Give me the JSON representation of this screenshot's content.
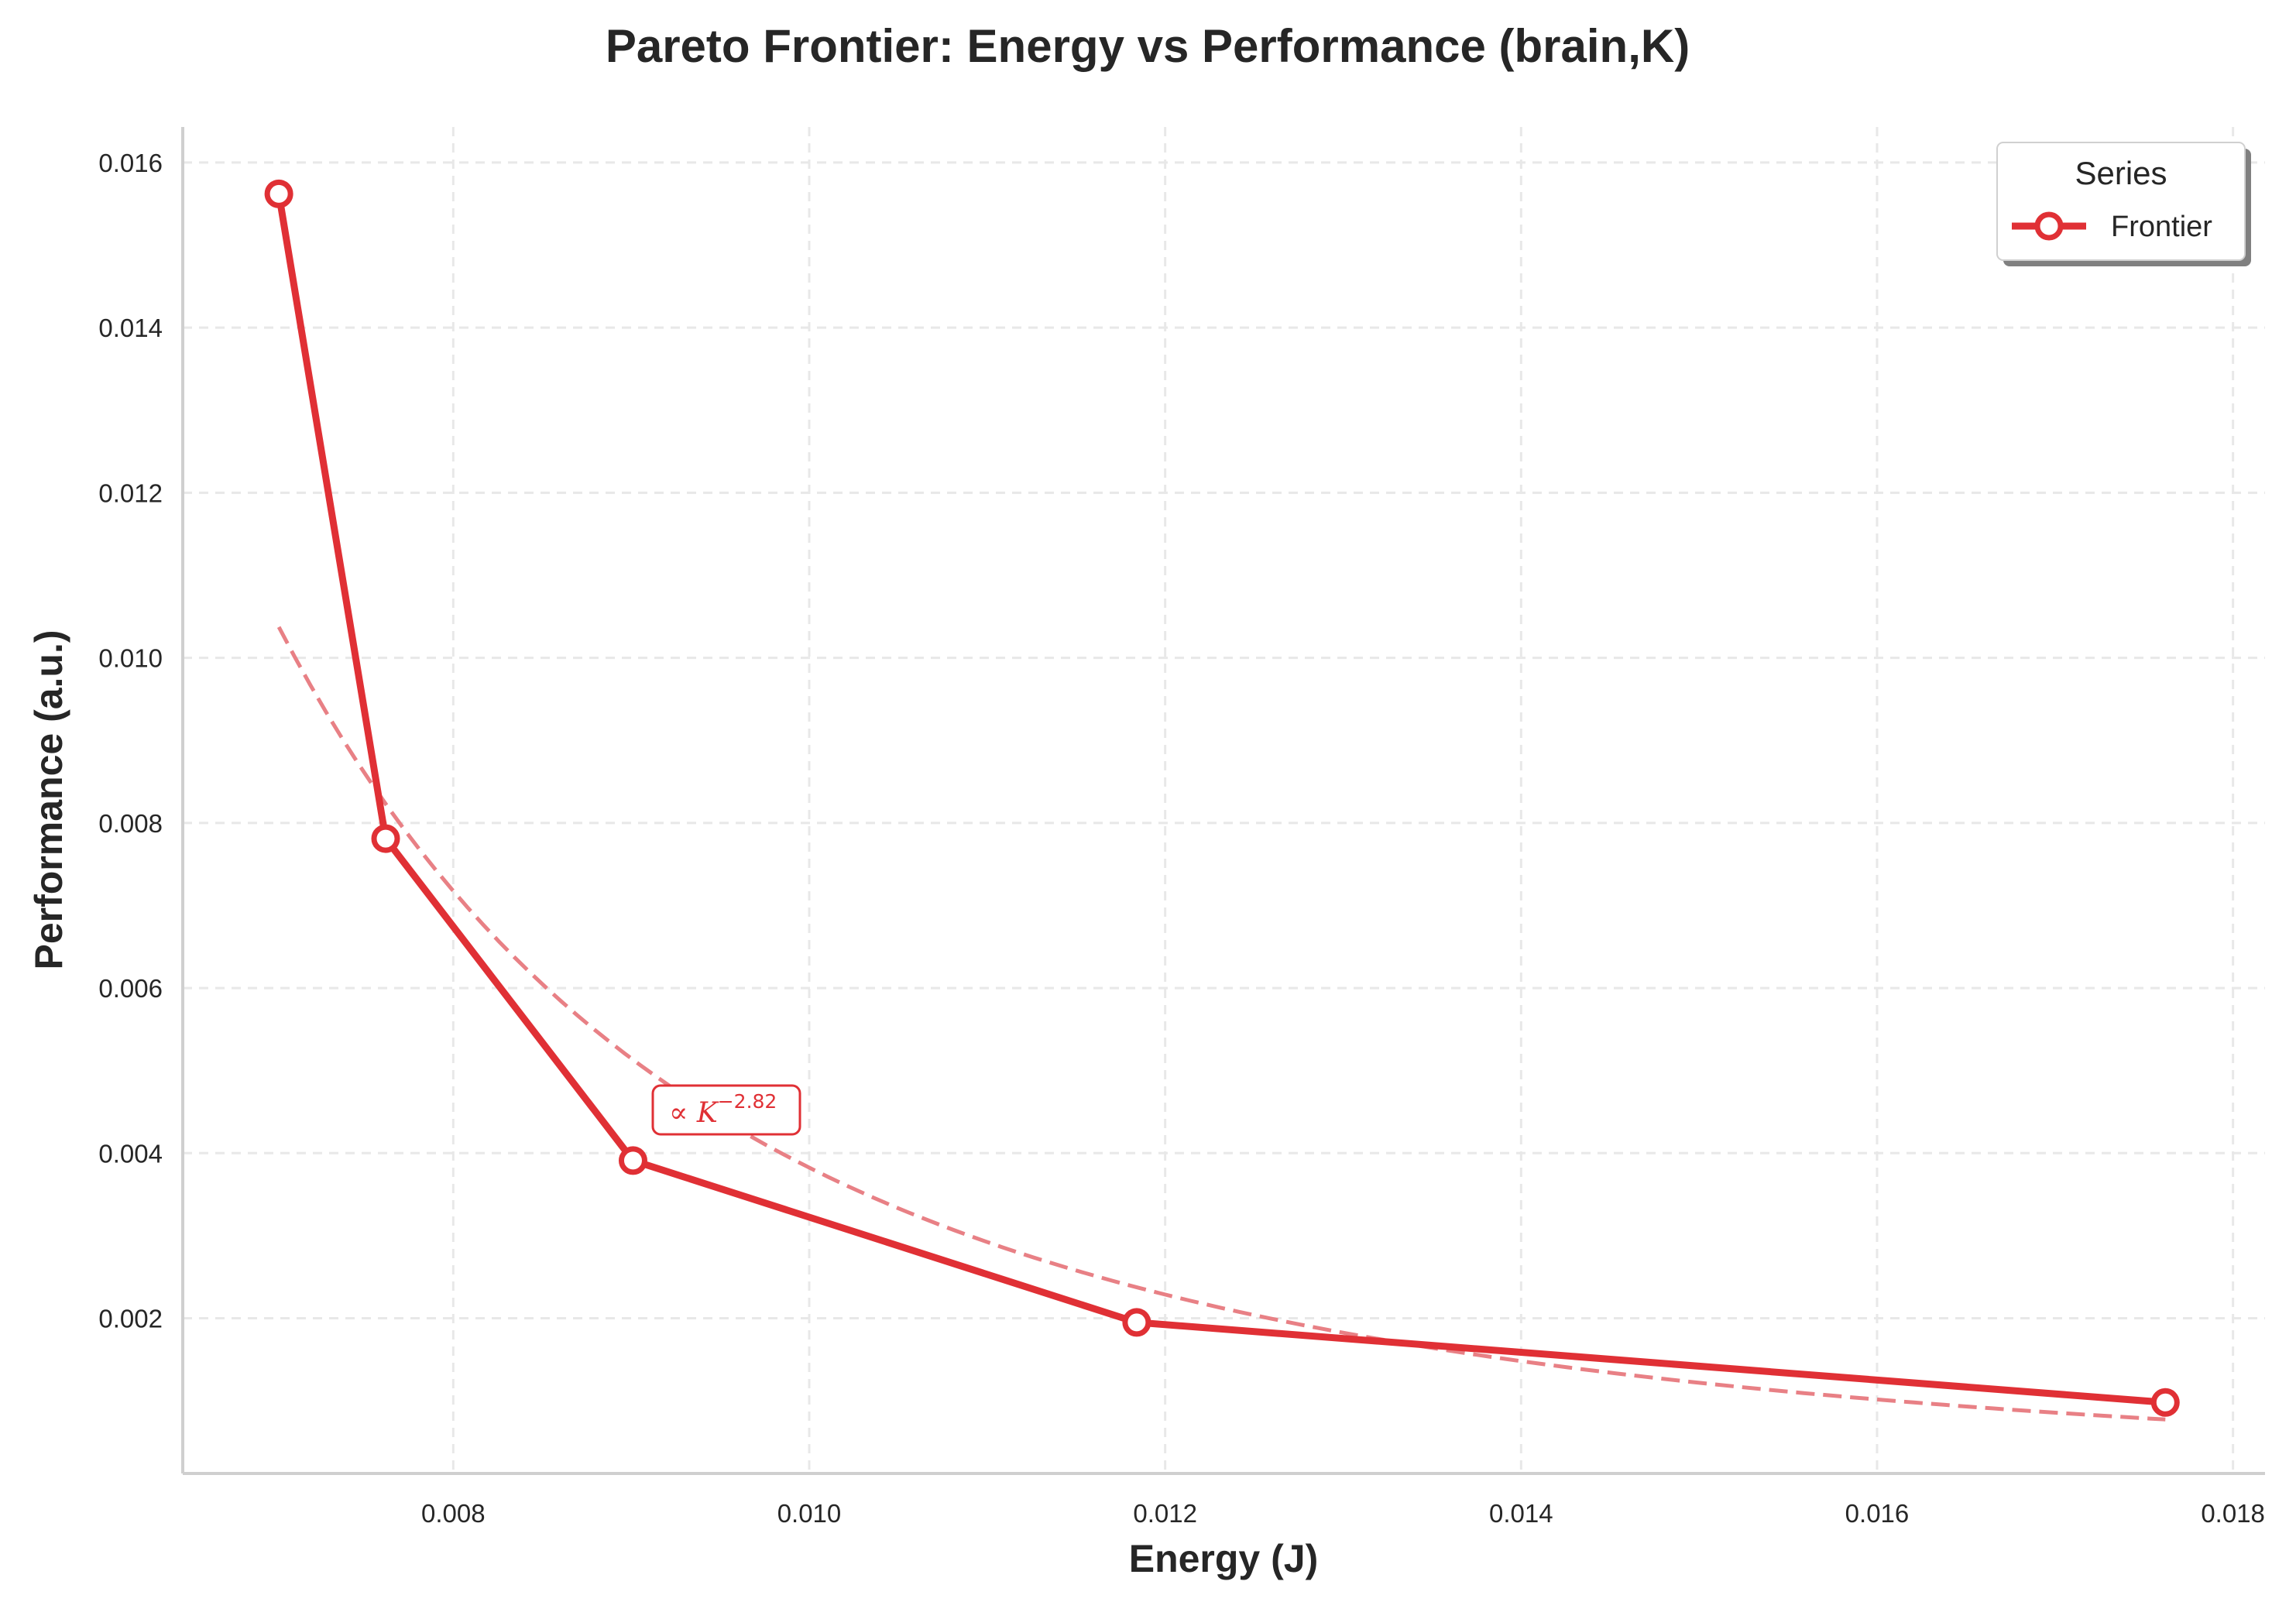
{
  "chart_data": {
    "type": "line",
    "title": "Pareto Frontier: Energy vs Performance (brain,K)",
    "xlabel": "Energy (J)",
    "ylabel": "Performance (a.u.)",
    "xlim": [
      0.00648,
      0.01818
    ],
    "ylim": [
      0.00012,
      0.01643
    ],
    "x_ticks": [
      0.008,
      0.01,
      0.012,
      0.014,
      0.016,
      0.018
    ],
    "x_tick_labels": [
      "0.008",
      "0.010",
      "0.012",
      "0.014",
      "0.016",
      "0.018"
    ],
    "y_ticks": [
      0.002,
      0.004,
      0.006,
      0.008,
      0.01,
      0.012,
      0.014,
      0.016
    ],
    "y_tick_labels": [
      "0.002",
      "0.004",
      "0.006",
      "0.008",
      "0.010",
      "0.012",
      "0.014",
      "0.016"
    ],
    "grid": true,
    "legend": {
      "title": "Series",
      "placement": "top-right"
    },
    "series": [
      {
        "name": "Frontier",
        "x": [
          0.00702,
          0.00762,
          0.00901,
          0.01184,
          0.01762
        ],
        "y": [
          0.01562,
          0.00781,
          0.00391,
          0.00195,
          0.00098
        ],
        "color": "#e03035"
      }
    ],
    "fit": {
      "exponent": -2.82,
      "x_range": [
        0.00702,
        0.01762
      ],
      "color": "#e88085"
    },
    "annotation": {
      "prefix": "∝ ",
      "variable": "K",
      "exponent_label": "−2.82",
      "x": 0.00902,
      "y": 0.00391
    }
  }
}
